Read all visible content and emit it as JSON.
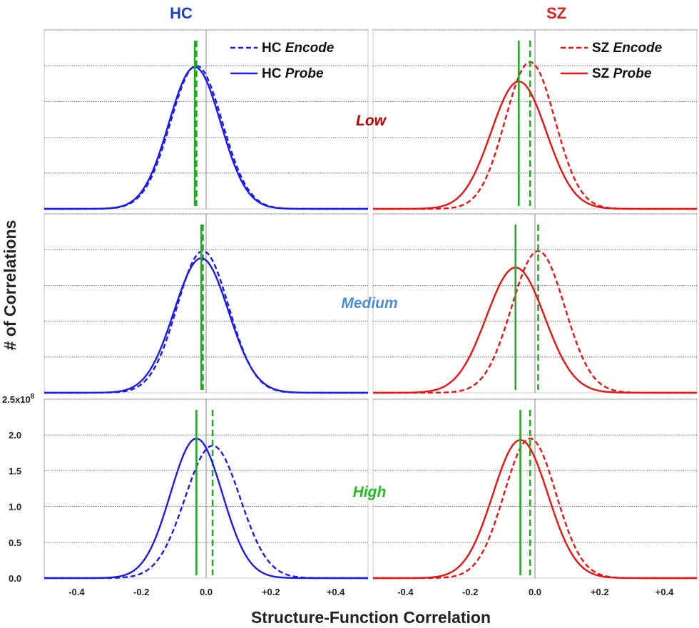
{
  "chart_data": {
    "type": "line",
    "title": "",
    "xlabel": "Structure-Function Correlation",
    "ylabel": "# of Correlations",
    "xlim": [
      -0.5,
      0.5
    ],
    "ylim": [
      0,
      250000000
    ],
    "y_tick_labels": [
      "0.0",
      "0.5",
      "1.0",
      "1.5",
      "2.0",
      "2.5x10"
    ],
    "y_tick_exponent": "8",
    "y_tick_values": [
      0,
      50000000,
      100000000,
      150000000,
      200000000,
      250000000
    ],
    "x_tick_labels": [
      "-0.4",
      "-0.2",
      "0.0",
      "+0.2",
      "+0.4"
    ],
    "x_tick_values": [
      -0.4,
      -0.2,
      0.0,
      0.2,
      0.4
    ],
    "columns": [
      {
        "key": "hc",
        "title": "HC",
        "color": "#1a1aee",
        "title_color": "#1a3fc4"
      },
      {
        "key": "sz",
        "title": "SZ",
        "color": "#ee1111",
        "title_color": "#e02020"
      }
    ],
    "rows": [
      {
        "key": "low",
        "label": "Low",
        "label_color": "#b80000"
      },
      {
        "key": "medium",
        "label": "Medium",
        "label_color": "#4d8fd6"
      },
      {
        "key": "high",
        "label": "High",
        "label_color": "#22bb22"
      }
    ],
    "legend": {
      "hc": [
        {
          "name": "HC",
          "style": "Encode",
          "dash": true
        },
        {
          "name": "HC",
          "style": "Probe",
          "dash": false
        }
      ],
      "sz": [
        {
          "name": "SZ",
          "style": "Encode",
          "dash": true
        },
        {
          "name": "SZ",
          "style": "Probe",
          "dash": false
        }
      ]
    },
    "mean_line_color": "#22aa22",
    "panels": [
      {
        "row": "low",
        "column": "hc",
        "series": [
          {
            "name": "HC Encode",
            "dash": true,
            "mean": -0.03,
            "sd": 0.08,
            "peak": 200000000
          },
          {
            "name": "HC Probe",
            "dash": false,
            "mean": -0.035,
            "sd": 0.08,
            "peak": 198000000
          }
        ]
      },
      {
        "row": "low",
        "column": "sz",
        "series": [
          {
            "name": "SZ Encode",
            "dash": true,
            "mean": -0.015,
            "sd": 0.077,
            "peak": 205000000
          },
          {
            "name": "SZ Probe",
            "dash": false,
            "mean": -0.05,
            "sd": 0.085,
            "peak": 178000000
          }
        ]
      },
      {
        "row": "medium",
        "column": "hc",
        "series": [
          {
            "name": "HC Encode",
            "dash": true,
            "mean": -0.01,
            "sd": 0.08,
            "peak": 198000000
          },
          {
            "name": "HC Probe",
            "dash": false,
            "mean": -0.015,
            "sd": 0.084,
            "peak": 188000000
          }
        ]
      },
      {
        "row": "medium",
        "column": "sz",
        "series": [
          {
            "name": "SZ Encode",
            "dash": true,
            "mean": 0.01,
            "sd": 0.082,
            "peak": 198000000
          },
          {
            "name": "SZ Probe",
            "dash": false,
            "mean": -0.06,
            "sd": 0.09,
            "peak": 175000000
          }
        ]
      },
      {
        "row": "high",
        "column": "hc",
        "series": [
          {
            "name": "HC Encode",
            "dash": true,
            "mean": 0.02,
            "sd": 0.085,
            "peak": 185000000
          },
          {
            "name": "HC Probe",
            "dash": false,
            "mean": -0.03,
            "sd": 0.08,
            "peak": 195000000
          }
        ]
      },
      {
        "row": "high",
        "column": "sz",
        "series": [
          {
            "name": "SZ Encode",
            "dash": true,
            "mean": -0.015,
            "sd": 0.08,
            "peak": 195000000
          },
          {
            "name": "SZ Probe",
            "dash": false,
            "mean": -0.045,
            "sd": 0.085,
            "peak": 193000000
          }
        ]
      }
    ]
  }
}
